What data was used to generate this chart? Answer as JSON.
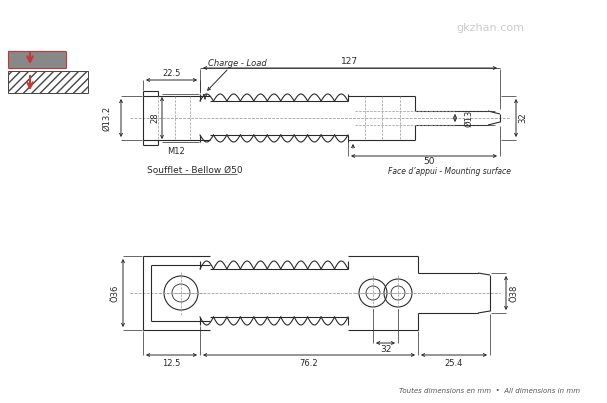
{
  "bg_color": "#ffffff",
  "line_color": "#2a2a2a",
  "dim_color": "#2a2a2a",
  "red_color": "#cc3333",
  "gray_color": "#888888",
  "title_note": "Toutes dimensions en mm  •  All dimensions in mm",
  "labels": {
    "charge_load": "Charge - Load",
    "soufflet": "Soufflet - Bellow Ø50",
    "face_appui": "Face d’appui - Mounting surface",
    "m12": "M12",
    "dim_127": "127",
    "dim_22_5": "22.5",
    "dim_13_2": "Ø13.2",
    "dim_28": "28",
    "dim_13": "Ø13",
    "dim_32_top": "32",
    "dim_50": "50",
    "dim_36": "Ö36",
    "dim_38": "Ö38",
    "dim_32_bot": "32",
    "dim_76_2": "76.2",
    "dim_12_5": "12.5",
    "dim_25_4": "25.4"
  },
  "watermark": "gkzhan.com"
}
